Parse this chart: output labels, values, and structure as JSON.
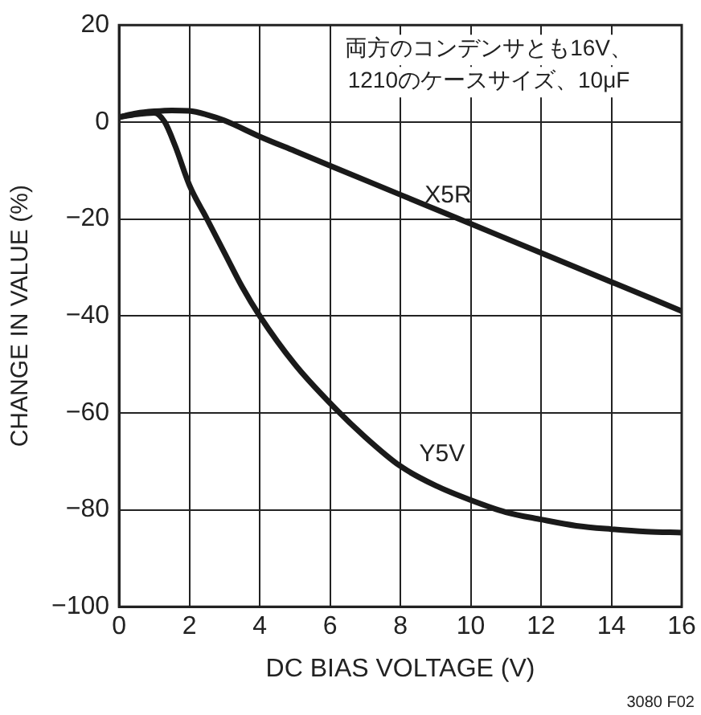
{
  "chart_data": {
    "type": "line",
    "xlabel": "DC BIAS VOLTAGE (V)",
    "ylabel": "CHANGE IN VALUE (%)",
    "annotations": [
      "両方のコンデンサとも16V、\n1210のケースサイズ、10μF",
      "3080 F02"
    ],
    "series": [
      {
        "name": "X5R",
        "color": "#1a1a1a",
        "x": [
          0,
          0.5,
          1,
          1.5,
          2,
          2.5,
          3,
          4,
          5,
          6,
          8,
          10,
          12,
          14,
          16
        ],
        "values": [
          1,
          1.8,
          2.2,
          2.4,
          2.3,
          1.5,
          0.3,
          -3,
          -6,
          -9,
          -15,
          -21,
          -27,
          -33,
          -39
        ]
      },
      {
        "name": "Y5V",
        "color": "#1a1a1a",
        "x": [
          0,
          0.5,
          1,
          1.3,
          1.6,
          2,
          2.5,
          3,
          3.5,
          4,
          5,
          6,
          7,
          8,
          9,
          10,
          11,
          12,
          13,
          14,
          15,
          16
        ],
        "values": [
          1,
          1.6,
          1.9,
          0,
          -5,
          -13,
          -20,
          -27,
          -34,
          -40,
          -50,
          -58,
          -65,
          -71,
          -75,
          -78,
          -80.5,
          -82,
          -83.3,
          -84,
          -84.5,
          -84.7
        ]
      }
    ],
    "xlim": [
      0,
      16
    ],
    "xticks": [
      0,
      2,
      4,
      6,
      8,
      10,
      12,
      14,
      16
    ],
    "ylim": [
      -100,
      20
    ],
    "yticks": [
      -100,
      -80,
      -60,
      -40,
      -20,
      0,
      20
    ],
    "grid": true,
    "legend": false,
    "marker": "none",
    "line_style": "solid"
  }
}
